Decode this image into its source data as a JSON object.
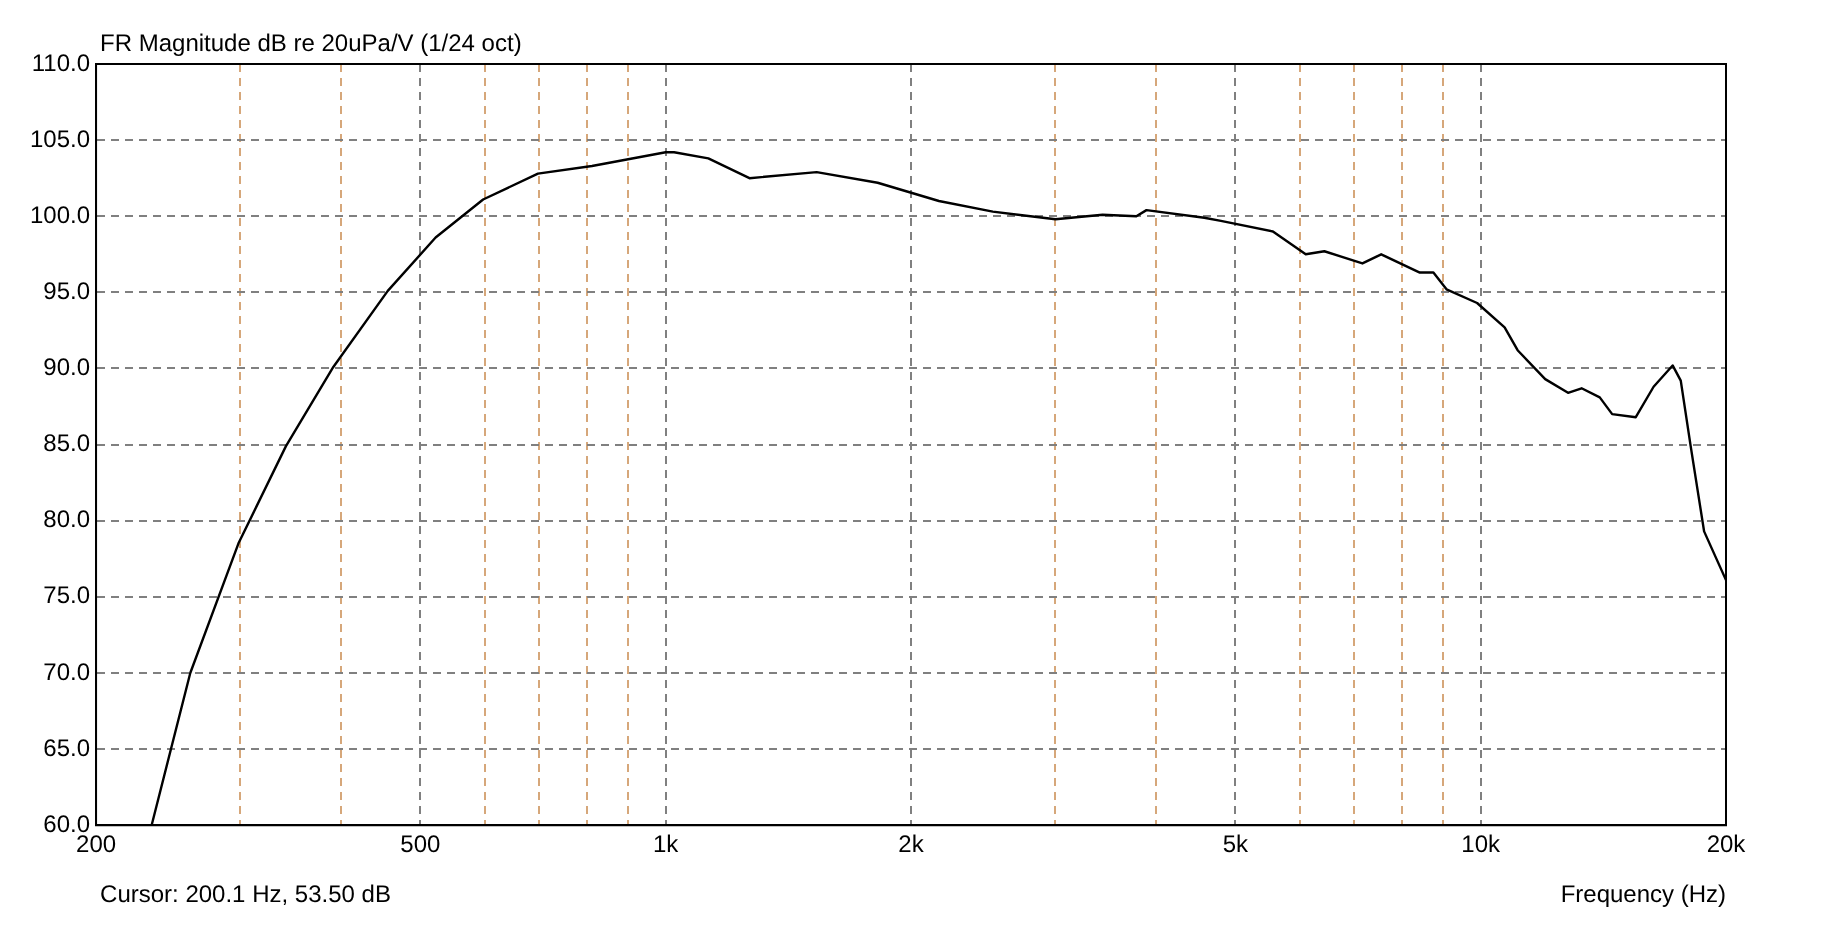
{
  "chart_data": {
    "type": "line",
    "title": "FR Magnitude dB re 20uPa/V (1/24 oct)",
    "xlabel": "Frequency (Hz)",
    "annotations": [
      "Cursor: 200.1 Hz, 53.50 dB"
    ],
    "log": "x",
    "grid": true,
    "legend": false,
    "marker": "none",
    "line_style": "solid",
    "xlim": [
      200,
      20000
    ],
    "ylim": [
      60,
      110
    ],
    "xticks": [
      {
        "value": 200,
        "label": "200"
      },
      {
        "value": 300,
        "label": null
      },
      {
        "value": 400,
        "label": null
      },
      {
        "value": 500,
        "label": "500"
      },
      {
        "value": 600,
        "label": null
      },
      {
        "value": 700,
        "label": null
      },
      {
        "value": 800,
        "label": null
      },
      {
        "value": 900,
        "label": null
      },
      {
        "value": 1000,
        "label": "1k"
      },
      {
        "value": 2000,
        "label": "2k"
      },
      {
        "value": 3000,
        "label": null
      },
      {
        "value": 4000,
        "label": null
      },
      {
        "value": 5000,
        "label": "5k"
      },
      {
        "value": 6000,
        "label": null
      },
      {
        "value": 7000,
        "label": null
      },
      {
        "value": 8000,
        "label": null
      },
      {
        "value": 9000,
        "label": null
      },
      {
        "value": 10000,
        "label": "10k"
      },
      {
        "value": 20000,
        "label": "20k"
      }
    ],
    "yticks": [
      {
        "value": 60,
        "label": "60.0"
      },
      {
        "value": 65,
        "label": "65.0"
      },
      {
        "value": 70,
        "label": "70.0"
      },
      {
        "value": 75,
        "label": "75.0"
      },
      {
        "value": 80,
        "label": "80.0"
      },
      {
        "value": 85,
        "label": "85.0"
      },
      {
        "value": 90,
        "label": "90.0"
      },
      {
        "value": 95,
        "label": "95.0"
      },
      {
        "value": 100,
        "label": "100.0"
      },
      {
        "value": 105,
        "label": "105.0"
      },
      {
        "value": 110,
        "label": "110.0"
      }
    ],
    "series": [
      {
        "color": "#000000",
        "x": [
          234,
          261,
          299,
          342,
          391,
          456,
          522,
          597,
          697,
          812,
          1000,
          1024,
          1128,
          1267,
          1532,
          1820,
          2164,
          2520,
          3008,
          3436,
          3780,
          3890,
          4580,
          4800,
          5560,
          6100,
          6430,
          7160,
          7550,
          8420,
          8750,
          9080,
          9900,
          10700,
          11100,
          12000,
          12800,
          13300,
          14000,
          14500,
          15500,
          16300,
          17200,
          17600,
          18100,
          18800,
          20000
        ],
        "values": [
          60.0,
          70.0,
          78.5,
          84.9,
          90.1,
          95.1,
          98.6,
          101.1,
          102.8,
          103.3,
          104.2,
          104.2,
          103.8,
          102.5,
          102.9,
          102.2,
          101.0,
          100.3,
          99.8,
          100.1,
          100.0,
          100.4,
          99.9,
          99.7,
          99.0,
          97.5,
          97.7,
          96.9,
          97.5,
          96.3,
          96.3,
          95.2,
          94.3,
          92.7,
          91.2,
          89.3,
          88.4,
          88.7,
          88.1,
          87.0,
          86.8,
          88.8,
          90.2,
          89.2,
          84.9,
          79.3,
          76.1
        ]
      }
    ]
  }
}
